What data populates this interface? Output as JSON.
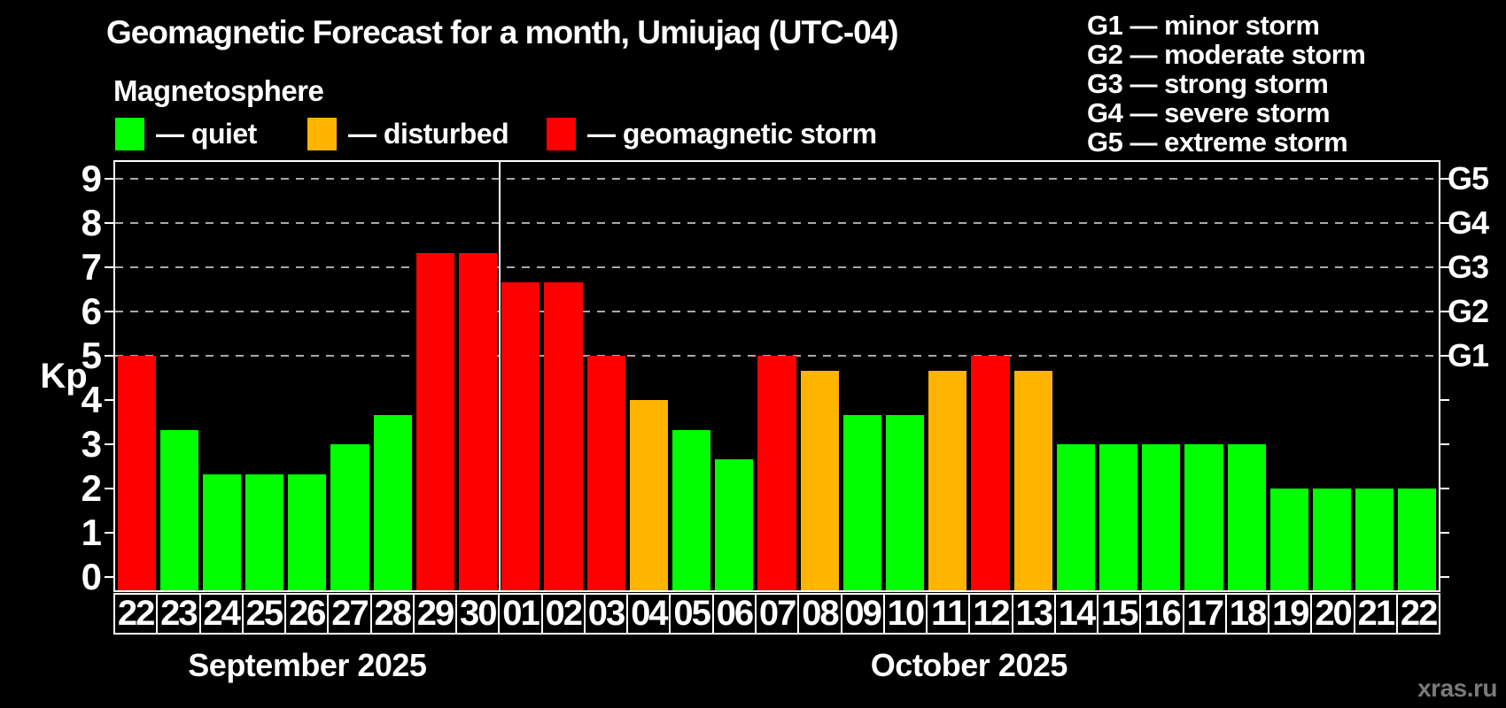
{
  "title": "Geomagnetic Forecast for a month, Umiujaq (UTC-04)",
  "subtitle": "Magnetosphere",
  "watermark": "xras.ru",
  "legend": {
    "items": [
      {
        "id": "quiet",
        "label": "— quiet",
        "color": "#00ff00"
      },
      {
        "id": "disturbed",
        "label": "— disturbed",
        "color": "#ffb400"
      },
      {
        "id": "storm",
        "label": "— geomagnetic storm",
        "color": "#ff0000"
      }
    ]
  },
  "g_scale_legend": [
    "G1 — minor storm",
    "G2 — moderate storm",
    "G3 — strong storm",
    "G4 — severe storm",
    "G5 — extreme storm"
  ],
  "chart_data": {
    "type": "bar",
    "title": "Geomagnetic Forecast for a month, Umiujaq (UTC-04)",
    "xlabel": "",
    "ylabel": "Kp",
    "ylim": [
      0,
      9
    ],
    "y_ticks": [
      0,
      1,
      2,
      3,
      4,
      5,
      6,
      7,
      8,
      9
    ],
    "grid_levels": [
      5,
      6,
      7,
      8,
      9
    ],
    "grid": "horizontal dashed lines at storm levels G1-G5 (Kp 5-9)",
    "legend_position": "top-left",
    "level_colors": {
      "quiet": "#00ff00",
      "disturbed": "#ffb400",
      "storm": "#ff0000"
    },
    "right_axis_labels": [
      {
        "value": 5,
        "label": "G1"
      },
      {
        "value": 6,
        "label": "G2"
      },
      {
        "value": 7,
        "label": "G3"
      },
      {
        "value": 8,
        "label": "G4"
      },
      {
        "value": 9,
        "label": "G5"
      }
    ],
    "months": [
      {
        "label": "September 2025",
        "count": 9
      },
      {
        "label": "October 2025",
        "count": 22
      }
    ],
    "categories": [
      "22",
      "23",
      "24",
      "25",
      "26",
      "27",
      "28",
      "29",
      "30",
      "01",
      "02",
      "03",
      "04",
      "05",
      "06",
      "07",
      "08",
      "09",
      "10",
      "11",
      "12",
      "13",
      "14",
      "15",
      "16",
      "17",
      "18",
      "19",
      "20",
      "21",
      "22"
    ],
    "values": [
      5,
      3.33,
      2.33,
      2.33,
      2.33,
      3,
      3.67,
      7.33,
      7.33,
      6.67,
      6.67,
      5,
      4,
      3.33,
      2.67,
      5,
      4.67,
      3.67,
      3.67,
      4.67,
      5,
      4.67,
      3,
      3,
      3,
      3,
      3,
      2,
      2,
      2,
      2
    ],
    "levels": [
      "storm",
      "quiet",
      "quiet",
      "quiet",
      "quiet",
      "quiet",
      "quiet",
      "storm",
      "storm",
      "storm",
      "storm",
      "storm",
      "disturbed",
      "quiet",
      "quiet",
      "storm",
      "disturbed",
      "quiet",
      "quiet",
      "disturbed",
      "storm",
      "disturbed",
      "quiet",
      "quiet",
      "quiet",
      "quiet",
      "quiet",
      "quiet",
      "quiet",
      "quiet",
      "quiet"
    ]
  }
}
